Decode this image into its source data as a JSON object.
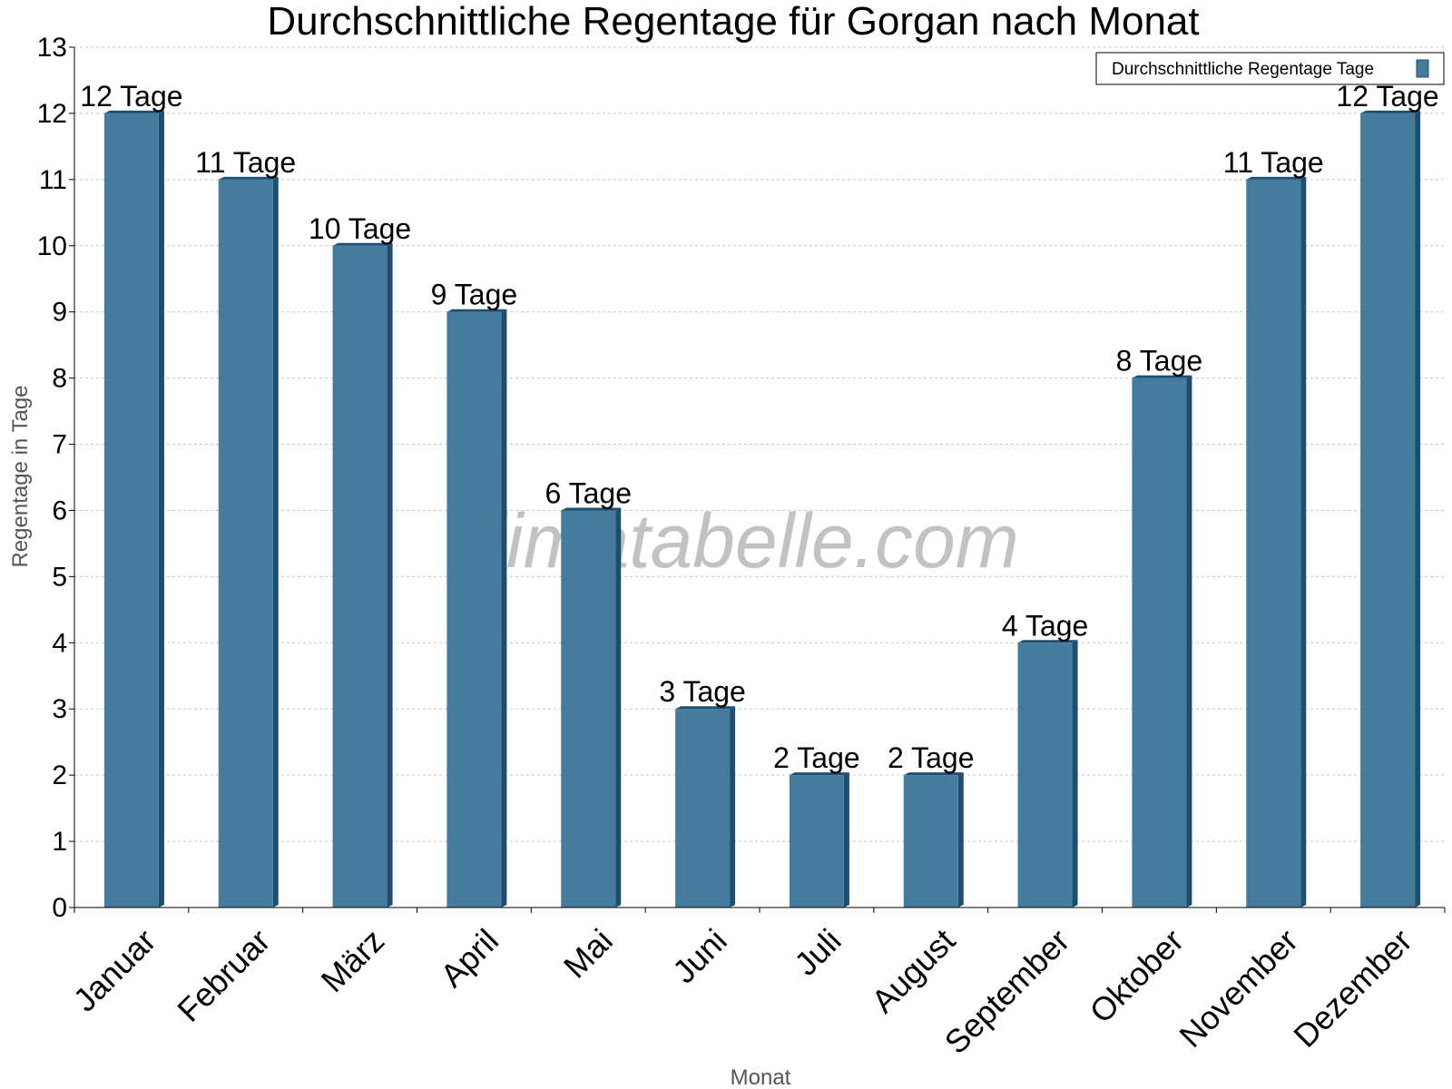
{
  "chart_data": {
    "type": "bar",
    "title": "Durchschnittliche Regentage für Gorgan nach Monat",
    "xlabel": "Monat",
    "ylabel": "Regentage in Tage",
    "ylim": [
      0,
      13
    ],
    "yticks": [
      0,
      1,
      2,
      3,
      4,
      5,
      6,
      7,
      8,
      9,
      10,
      11,
      12,
      13
    ],
    "grid": true,
    "legend_position": "top-right",
    "categories": [
      "Januar",
      "Februar",
      "März",
      "April",
      "Mai",
      "Juni",
      "Juli",
      "August",
      "September",
      "Oktober",
      "November",
      "Dezember"
    ],
    "series": [
      {
        "name": "Durchschnittliche Regentage Tage",
        "values": [
          12,
          11,
          10,
          9,
          6,
          3,
          2,
          2,
          4,
          8,
          11,
          12
        ],
        "labels": [
          "12 Tage",
          "11 Tage",
          "10 Tage",
          "9 Tage",
          "6 Tage",
          "3 Tage",
          "2 Tage",
          "2 Tage",
          "4 Tage",
          "8 Tage",
          "11 Tage",
          "12 Tage"
        ],
        "color": "#457b9d",
        "side_color": "#1d4e70"
      }
    ],
    "watermark": "klimatabelle.com"
  }
}
